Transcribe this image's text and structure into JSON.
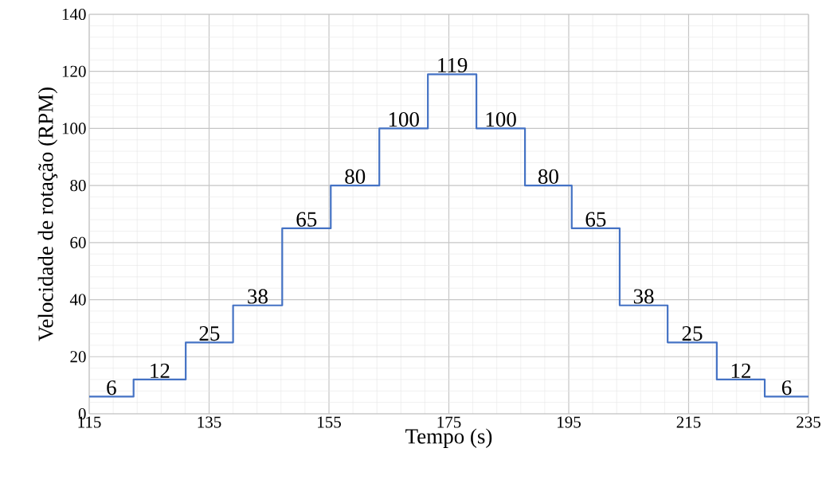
{
  "chart_data": {
    "type": "step",
    "xlabel": "Tempo (s)",
    "ylabel": "Velocidade de rotação (RPM)",
    "x": [
      115,
      122.4,
      131.1,
      139,
      147.2,
      155.3,
      163.4,
      171.5,
      179.6,
      187.7,
      195.5,
      203.5,
      211.5,
      219.7,
      227.7,
      235
    ],
    "series": [
      {
        "color": "#4472c4",
        "values": [
          6,
          12,
          25,
          38,
          65,
          80,
          100,
          119,
          100,
          80,
          65,
          38,
          25,
          12,
          6,
          6
        ],
        "value_labels": [
          "6",
          "12",
          "25",
          "38",
          "65",
          "80",
          "100",
          "119",
          "100",
          "80",
          "65",
          "38",
          "25",
          "12",
          "6",
          null
        ]
      }
    ],
    "xlim": [
      115,
      235
    ],
    "xticks": [
      115,
      135,
      155,
      175,
      195,
      215,
      235
    ],
    "ylim": [
      0,
      140
    ],
    "yticks": [
      0,
      20,
      40,
      60,
      80,
      100,
      120,
      140
    ],
    "grid": true,
    "marker": "none",
    "line_style": "solid"
  }
}
